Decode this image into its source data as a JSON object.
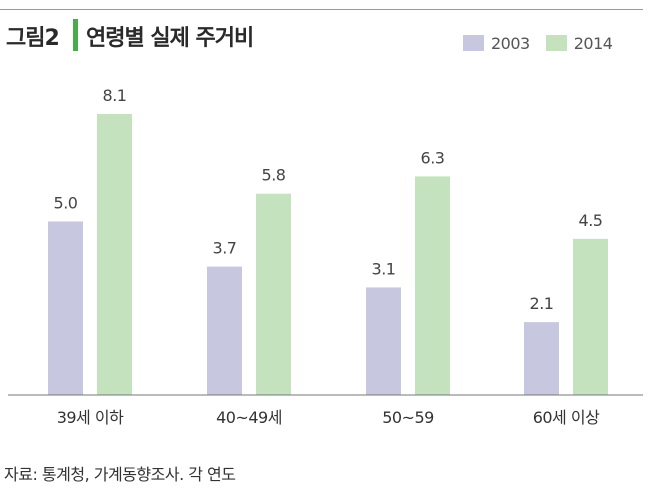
{
  "header": {
    "figure_label": "그림2",
    "title": "연령별 실제 주거비"
  },
  "source": "자료: 통계청, 가계동향조사. 각 연도",
  "colors": {
    "series_2003": "#c7c7df",
    "series_2014": "#c5e2bf",
    "title_accent": "#4aab4a",
    "baseline": "#777777",
    "top_rule": "#999999"
  },
  "chart_data": {
    "type": "bar",
    "title": "연령별 실제 주거비",
    "xlabel": "",
    "ylabel": "",
    "categories": [
      "39세 이하",
      "40~49세",
      "50~59",
      "60세 이상"
    ],
    "series": [
      {
        "name": "2003",
        "values": [
          5.0,
          3.7,
          3.1,
          2.1
        ]
      },
      {
        "name": "2014",
        "values": [
          8.1,
          5.8,
          6.3,
          4.5
        ]
      }
    ],
    "value_labels": [
      [
        "5.0",
        "3.7",
        "3.1",
        "2.1"
      ],
      [
        "8.1",
        "5.8",
        "6.3",
        "4.5"
      ]
    ],
    "ylim": [
      0,
      9.5
    ],
    "grid": false,
    "legend_position": "top-right"
  }
}
